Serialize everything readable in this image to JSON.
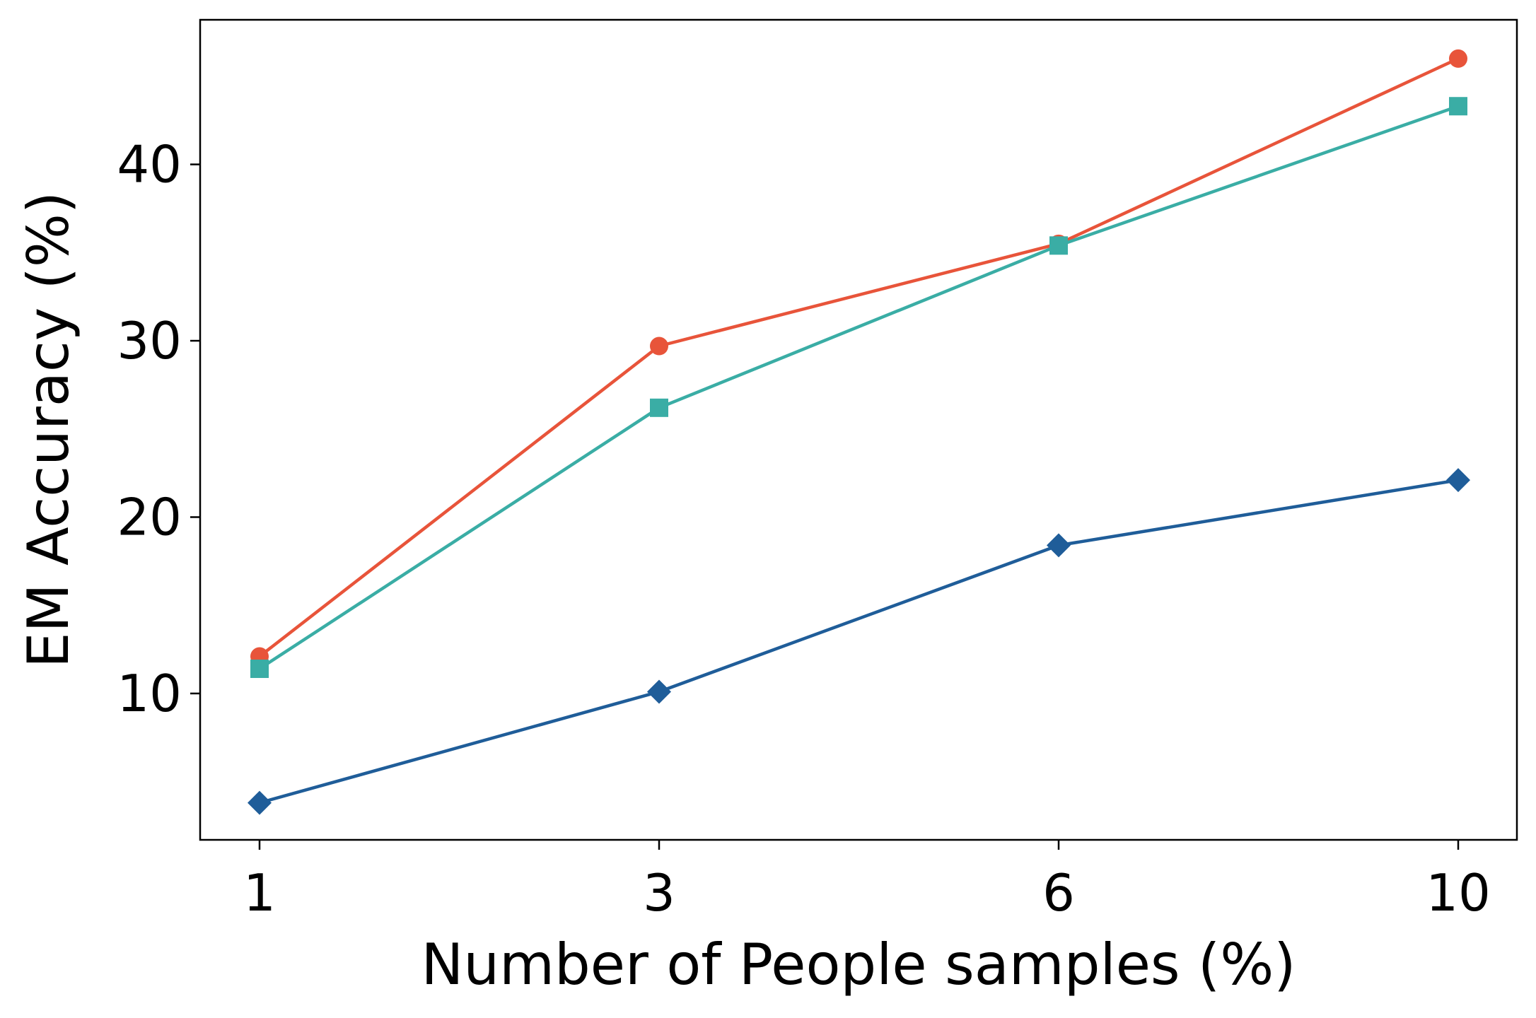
{
  "chart_data": {
    "type": "line",
    "title": "",
    "xlabel": "Number of People samples (%)",
    "ylabel": "EM Accuracy (%)",
    "x": [
      1,
      3,
      6,
      10
    ],
    "x_tick_labels": [
      "1",
      "3",
      "6",
      "10"
    ],
    "y_ticks": [
      10,
      20,
      30,
      40
    ],
    "y_tick_labels": [
      "10",
      "20",
      "30",
      "40"
    ],
    "ylim": [
      1.7,
      48.2
    ],
    "grid": false,
    "legend": "none",
    "series": [
      {
        "color": "#e8543a",
        "marker": "circle",
        "values": [
          12.1,
          29.7,
          35.5,
          46.0
        ]
      },
      {
        "color": "#3aada5",
        "marker": "square",
        "values": [
          11.4,
          26.2,
          35.4,
          43.3
        ]
      },
      {
        "color": "#1f5d99",
        "marker": "diamond",
        "values": [
          3.8,
          10.1,
          18.4,
          22.1
        ]
      }
    ]
  }
}
